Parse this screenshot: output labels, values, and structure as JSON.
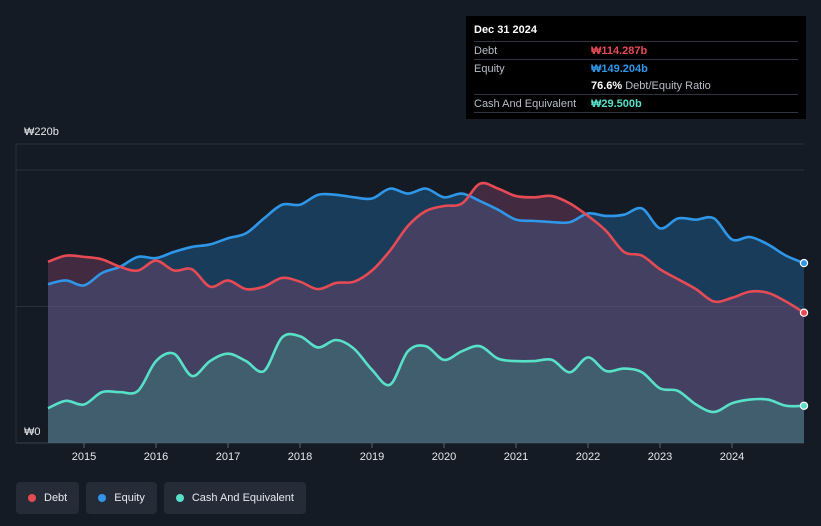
{
  "tooltip": {
    "date": "Dec 31 2024",
    "debt_label": "Debt",
    "debt_value": "₩114.287b",
    "equity_label": "Equity",
    "equity_value": "₩149.204b",
    "ratio_value": "76.6%",
    "ratio_label": "Debt/Equity Ratio",
    "cash_label": "Cash And Equivalent",
    "cash_value": "₩29.500b"
  },
  "legend": {
    "debt": "Debt",
    "equity": "Equity",
    "cash": "Cash And Equivalent"
  },
  "colors": {
    "debt": "#e64b55",
    "equity": "#2f96e8",
    "cash": "#58e0c8",
    "background": "#151b24"
  },
  "chart_data": {
    "type": "area",
    "y_top_label": "₩220b",
    "y_bottom_label": "₩0",
    "ylim": [
      0,
      220
    ],
    "xlim": [
      2014.5,
      2025.0
    ],
    "xticks": [
      2015,
      2016,
      2017,
      2018,
      2019,
      2020,
      2021,
      2022,
      2023,
      2024
    ],
    "grid": true,
    "series": [
      {
        "name": "Debt",
        "color": "#e64b55",
        "points": [
          [
            2014.5,
            146
          ],
          [
            2014.75,
            151
          ],
          [
            2015.0,
            150
          ],
          [
            2015.25,
            148
          ],
          [
            2015.5,
            142
          ],
          [
            2015.75,
            139
          ],
          [
            2016.0,
            147
          ],
          [
            2016.25,
            139
          ],
          [
            2016.5,
            140
          ],
          [
            2016.75,
            126
          ],
          [
            2017.0,
            131
          ],
          [
            2017.25,
            124
          ],
          [
            2017.5,
            126
          ],
          [
            2017.75,
            133
          ],
          [
            2018.0,
            130
          ],
          [
            2018.25,
            124
          ],
          [
            2018.5,
            129
          ],
          [
            2018.75,
            130
          ],
          [
            2019.0,
            139
          ],
          [
            2019.25,
            155
          ],
          [
            2019.5,
            175
          ],
          [
            2019.75,
            187
          ],
          [
            2020.0,
            191
          ],
          [
            2020.25,
            193
          ],
          [
            2020.5,
            209
          ],
          [
            2020.75,
            205
          ],
          [
            2021.0,
            199
          ],
          [
            2021.25,
            198
          ],
          [
            2021.5,
            199
          ],
          [
            2021.75,
            193
          ],
          [
            2022.0,
            183
          ],
          [
            2022.25,
            171
          ],
          [
            2022.5,
            154
          ],
          [
            2022.75,
            151
          ],
          [
            2023.0,
            140
          ],
          [
            2023.25,
            132
          ],
          [
            2023.5,
            124
          ],
          [
            2023.75,
            114
          ],
          [
            2024.0,
            117
          ],
          [
            2024.25,
            122
          ],
          [
            2024.5,
            121
          ],
          [
            2024.75,
            114
          ],
          [
            2025.0,
            105
          ]
        ]
      },
      {
        "name": "Equity",
        "color": "#2f96e8",
        "points": [
          [
            2014.5,
            128
          ],
          [
            2014.75,
            131
          ],
          [
            2015.0,
            127
          ],
          [
            2015.25,
            137
          ],
          [
            2015.5,
            142
          ],
          [
            2015.75,
            150
          ],
          [
            2016.0,
            149
          ],
          [
            2016.25,
            154
          ],
          [
            2016.5,
            158
          ],
          [
            2016.75,
            160
          ],
          [
            2017.0,
            165
          ],
          [
            2017.25,
            169
          ],
          [
            2017.5,
            181
          ],
          [
            2017.75,
            192
          ],
          [
            2018.0,
            192
          ],
          [
            2018.25,
            200
          ],
          [
            2018.5,
            200
          ],
          [
            2018.75,
            198
          ],
          [
            2019.0,
            197
          ],
          [
            2019.25,
            205
          ],
          [
            2019.5,
            201
          ],
          [
            2019.75,
            205
          ],
          [
            2020.0,
            198
          ],
          [
            2020.25,
            201
          ],
          [
            2020.5,
            195
          ],
          [
            2020.75,
            188
          ],
          [
            2021.0,
            180
          ],
          [
            2021.25,
            179
          ],
          [
            2021.5,
            178
          ],
          [
            2021.75,
            178
          ],
          [
            2022.0,
            185
          ],
          [
            2022.25,
            183
          ],
          [
            2022.5,
            184
          ],
          [
            2022.75,
            189
          ],
          [
            2023.0,
            173
          ],
          [
            2023.25,
            181
          ],
          [
            2023.5,
            180
          ],
          [
            2023.75,
            181
          ],
          [
            2024.0,
            164
          ],
          [
            2024.25,
            166
          ],
          [
            2024.5,
            160
          ],
          [
            2024.75,
            151
          ],
          [
            2025.0,
            145
          ]
        ]
      },
      {
        "name": "Cash And Equivalent",
        "color": "#58e0c8",
        "points": [
          [
            2014.5,
            28
          ],
          [
            2014.75,
            34
          ],
          [
            2015.0,
            31
          ],
          [
            2015.25,
            41
          ],
          [
            2015.5,
            41
          ],
          [
            2015.75,
            42
          ],
          [
            2016.0,
            66
          ],
          [
            2016.25,
            72
          ],
          [
            2016.5,
            54
          ],
          [
            2016.75,
            66
          ],
          [
            2017.0,
            72
          ],
          [
            2017.25,
            66
          ],
          [
            2017.5,
            58
          ],
          [
            2017.75,
            85
          ],
          [
            2018.0,
            86
          ],
          [
            2018.25,
            77
          ],
          [
            2018.5,
            83
          ],
          [
            2018.75,
            76
          ],
          [
            2019.0,
            59
          ],
          [
            2019.25,
            47
          ],
          [
            2019.5,
            74
          ],
          [
            2019.75,
            78
          ],
          [
            2020.0,
            67
          ],
          [
            2020.25,
            74
          ],
          [
            2020.5,
            78
          ],
          [
            2020.75,
            68
          ],
          [
            2021.0,
            66
          ],
          [
            2021.25,
            66
          ],
          [
            2021.5,
            67
          ],
          [
            2021.75,
            57
          ],
          [
            2022.0,
            69
          ],
          [
            2022.25,
            58
          ],
          [
            2022.5,
            60
          ],
          [
            2022.75,
            57
          ],
          [
            2023.0,
            44
          ],
          [
            2023.25,
            42
          ],
          [
            2023.5,
            31
          ],
          [
            2023.75,
            25
          ],
          [
            2024.0,
            32
          ],
          [
            2024.25,
            35
          ],
          [
            2024.5,
            35
          ],
          [
            2024.75,
            30
          ],
          [
            2025.0,
            30
          ]
        ]
      }
    ]
  }
}
